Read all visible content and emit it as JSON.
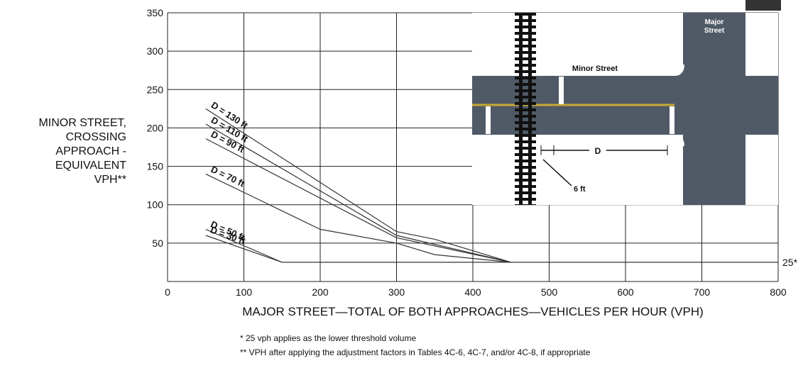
{
  "chart_data": {
    "type": "line",
    "y_label_lines": [
      "MINOR STREET,",
      "CROSSING",
      "APPROACH -",
      "EQUIVALENT",
      "VPH**"
    ],
    "x_label": "MAJOR STREET—TOTAL OF BOTH APPROACHES—VEHICLES PER HOUR (VPH)",
    "footnotes": [
      "* 25 vph applies as the lower threshold volume",
      "** VPH after applying the adjustment factors in Tables 4C-6, 4C-7, and/or 4C-8, if appropriate"
    ],
    "xlim": [
      0,
      800
    ],
    "xticks": [
      0,
      100,
      200,
      300,
      400,
      500,
      600,
      700,
      800
    ],
    "ylim": [
      0,
      350
    ],
    "yticks": [
      50,
      100,
      150,
      200,
      250,
      300,
      350
    ],
    "grid": true,
    "series": [
      {
        "name": "D = 130 ft",
        "color": "#333333",
        "x": [
          50,
          300,
          350,
          450
        ],
        "values": [
          225,
          65,
          55,
          25
        ]
      },
      {
        "name": "D = 110 ft",
        "color": "#333333",
        "x": [
          50,
          300,
          450
        ],
        "values": [
          205,
          60,
          25
        ]
      },
      {
        "name": "D = 90 ft",
        "color": "#333333",
        "x": [
          50,
          300,
          450
        ],
        "values": [
          186,
          57,
          25
        ]
      },
      {
        "name": "D = 70 ft",
        "color": "#333333",
        "x": [
          50,
          200,
          300,
          350,
          450
        ],
        "values": [
          140,
          68,
          50,
          35,
          25
        ]
      },
      {
        "name": "D = 50 ft",
        "color": "#333333",
        "x": [
          50,
          150
        ],
        "values": [
          68,
          25
        ]
      },
      {
        "name": "D = 30 ft",
        "color": "#333333",
        "x": [
          50,
          150
        ],
        "values": [
          60,
          25
        ]
      },
      {
        "name": "25*",
        "color": "#333333",
        "x": [
          150,
          800
        ],
        "values": [
          25,
          25
        ],
        "threshold": true
      }
    ],
    "inset": {
      "major_street": [
        "Major",
        "Street"
      ],
      "minor_street": "Minor Street",
      "d_label": "D",
      "offset_label": "6 ft"
    }
  }
}
